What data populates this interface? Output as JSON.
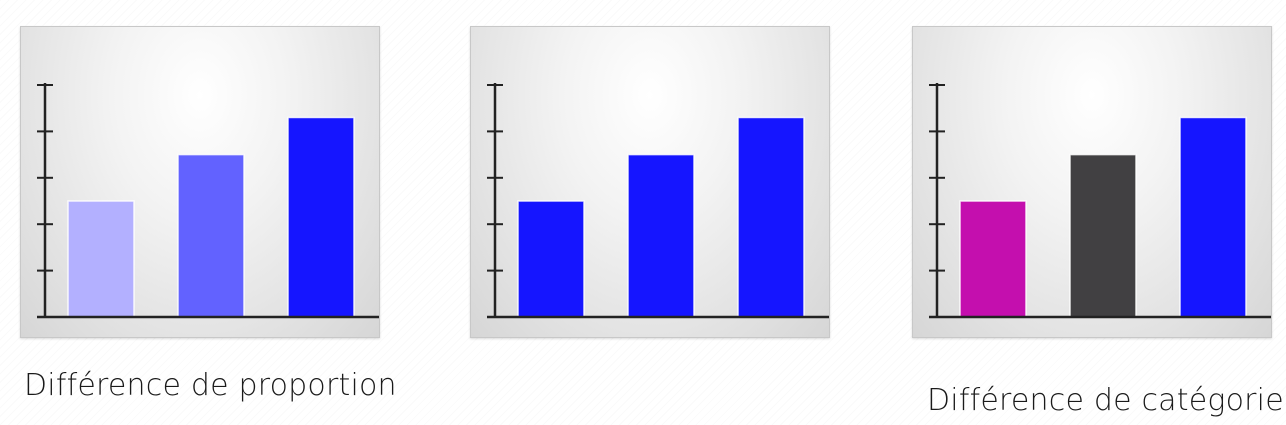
{
  "captions": {
    "left": "Différence de proportion",
    "right": "Différence de catégorie"
  },
  "colors": {
    "axis": "#222222",
    "panel_border": "#c8c8c8",
    "caption_text": "#1a1a1a"
  },
  "chart_data": [
    {
      "type": "bar",
      "categories": [
        "",
        "",
        ""
      ],
      "values": [
        2.5,
        3.5,
        4.3
      ],
      "ylim": [
        0,
        5
      ],
      "yticks": [
        1,
        2,
        3,
        4,
        5
      ],
      "colors": [
        "#b3b0ff",
        "#6262ff",
        "#1515ff"
      ],
      "title": "",
      "xlabel": "",
      "ylabel": "",
      "grid": false,
      "legend": "none"
    },
    {
      "type": "bar",
      "categories": [
        "",
        "",
        ""
      ],
      "values": [
        2.5,
        3.5,
        4.3
      ],
      "ylim": [
        0,
        5
      ],
      "yticks": [
        1,
        2,
        3,
        4,
        5
      ],
      "colors": [
        "#1515ff",
        "#1515ff",
        "#1515ff"
      ],
      "title": "",
      "xlabel": "",
      "ylabel": "",
      "grid": false,
      "legend": "none"
    },
    {
      "type": "bar",
      "categories": [
        "",
        "",
        ""
      ],
      "values": [
        2.5,
        3.5,
        4.3
      ],
      "ylim": [
        0,
        5
      ],
      "yticks": [
        1,
        2,
        3,
        4,
        5
      ],
      "colors": [
        "#c40fae",
        "#414042",
        "#1515ff"
      ],
      "title": "",
      "xlabel": "",
      "ylabel": "",
      "grid": false,
      "legend": "none"
    }
  ]
}
